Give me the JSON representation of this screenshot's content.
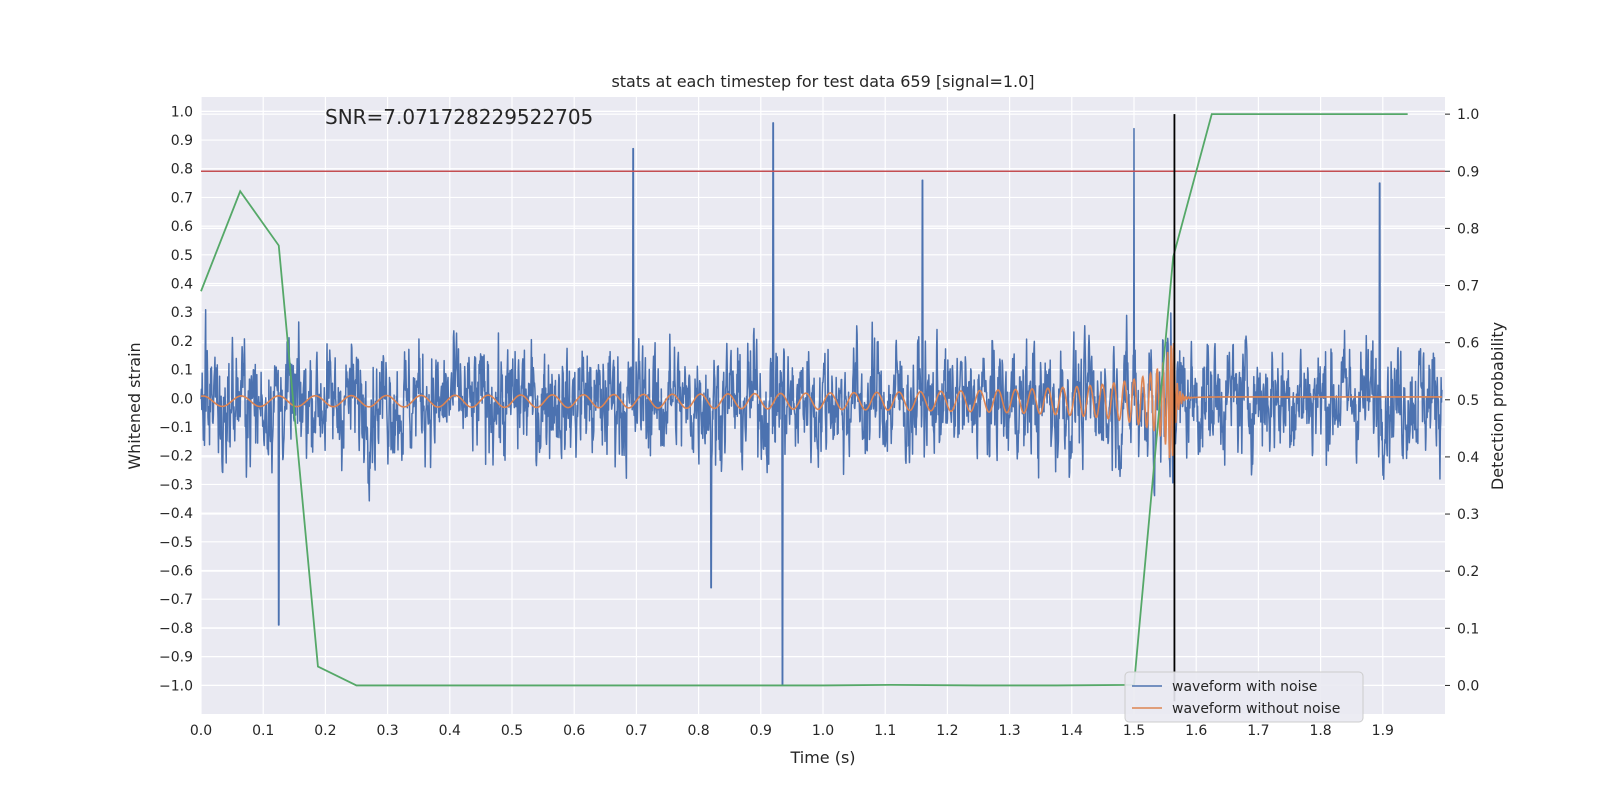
{
  "chart_data": {
    "type": "line",
    "title": "stats at each timestep for test data 659 [signal=1.0]",
    "xlabel": "Time (s)",
    "ylabel": "Whitened strain",
    "y2label": "Detection probability",
    "annotation": "SNR=7.071728229522705",
    "xlim": [
      0.0,
      2.0
    ],
    "ylim": [
      -1.1,
      1.05
    ],
    "y2lim": [
      -0.05,
      1.03
    ],
    "xticks": [
      "0.0",
      "0.1",
      "0.2",
      "0.3",
      "0.4",
      "0.5",
      "0.6",
      "0.7",
      "0.8",
      "0.9",
      "1.0",
      "1.1",
      "1.2",
      "1.3",
      "1.4",
      "1.5",
      "1.6",
      "1.7",
      "1.8",
      "1.9"
    ],
    "yticks": [
      "1.0",
      "0.9",
      "0.8",
      "0.7",
      "0.6",
      "0.5",
      "0.4",
      "0.3",
      "0.2",
      "0.1",
      "0.0",
      "−0.1",
      "−0.2",
      "−0.3",
      "−0.4",
      "−0.5",
      "−0.6",
      "−0.7",
      "−0.8",
      "−0.9",
      "−1.0"
    ],
    "y2ticks": [
      "1.0",
      "0.9",
      "0.8",
      "0.7",
      "0.6",
      "0.5",
      "0.4",
      "0.3",
      "0.2",
      "0.1",
      "0.0"
    ],
    "grid": true,
    "legend_placement": "lower-right",
    "colors": {
      "noisy": "#4c72b0",
      "clean": "#dd8452",
      "probability": "#55a868",
      "threshold": "#c44e52",
      "marker": "#000000",
      "background": "#eaeaf2",
      "grid": "#ffffff"
    },
    "threshold_y2": 0.9,
    "marker_x": 1.565,
    "series": [
      {
        "name": "waveform with noise",
        "description": "noisy whitened strain fluctuating roughly between -0.6 and 0.6 with spikes",
        "range": [
          -1.0,
          0.96
        ],
        "spikes": [
          [
            0.935,
            -1.0
          ],
          [
            0.92,
            0.96
          ],
          [
            1.5,
            0.94
          ],
          [
            0.125,
            -0.79
          ],
          [
            0.695,
            0.87
          ],
          [
            1.895,
            0.75
          ],
          [
            1.16,
            0.76
          ],
          [
            0.82,
            -0.66
          ]
        ]
      },
      {
        "name": "waveform without noise",
        "description": "chirp signal with growing amplitude, merger near t=1.565 s",
        "peak_x": 1.565,
        "peak_amplitude": 0.2
      },
      {
        "name": "",
        "axis": "y2",
        "x": [
          0.0,
          0.063,
          0.125,
          0.188,
          0.25,
          0.5,
          0.75,
          1.0,
          1.11,
          1.25,
          1.375,
          1.5,
          1.563,
          1.625,
          1.75,
          1.875,
          1.94
        ],
        "values": [
          0.69,
          0.865,
          0.77,
          0.033,
          0.0,
          0.0,
          0.0,
          0.0,
          0.001,
          0.0,
          0.0,
          0.001,
          0.75,
          1.0,
          1.0,
          1.0,
          1.0
        ]
      }
    ]
  }
}
